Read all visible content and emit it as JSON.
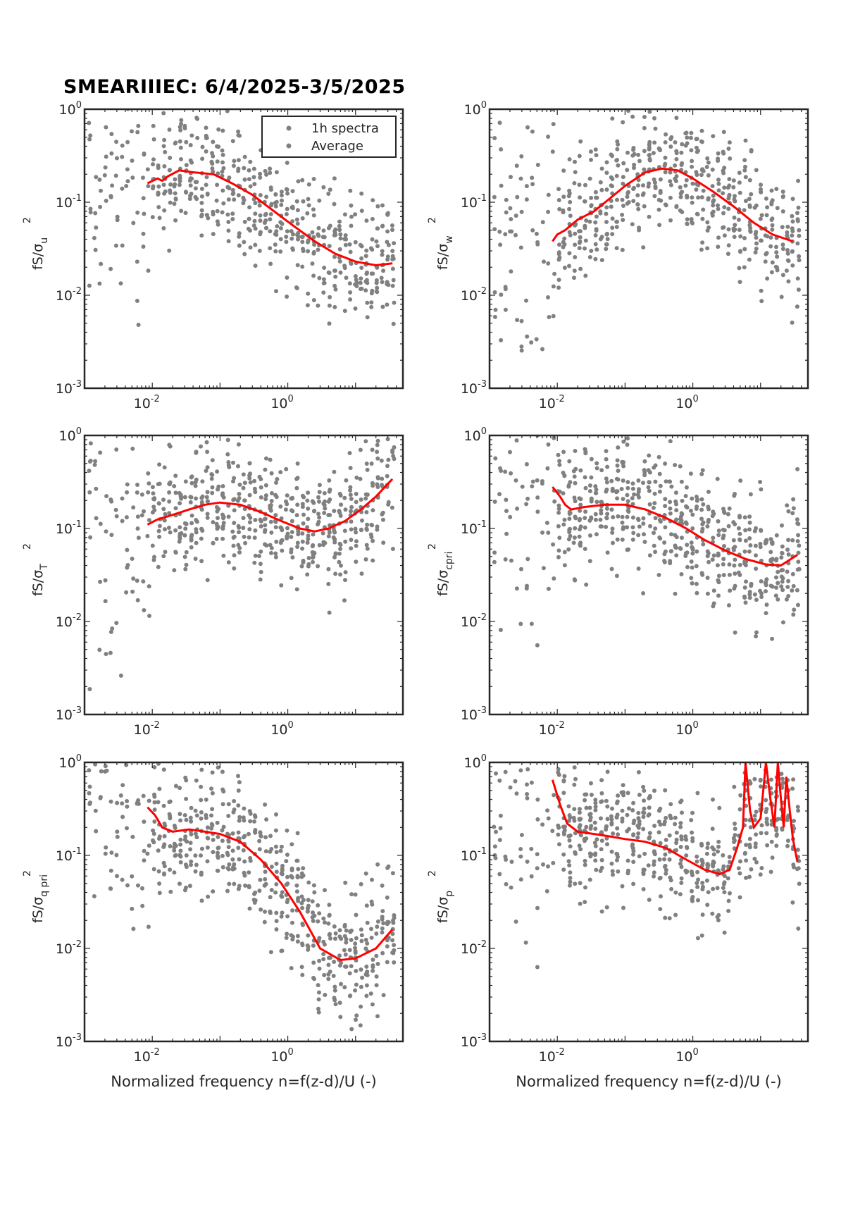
{
  "figure": {
    "title": "SMEARIIIEC: 6/4/2025-3/5/2025"
  },
  "colors": {
    "scatter": "#808080",
    "average_line": "#ff0000",
    "axes": "#262626"
  },
  "chart_data": [
    {
      "type": "scatter",
      "panel": "u",
      "xscale": "log",
      "yscale": "log",
      "xlim": [
        0.001,
        50
      ],
      "ylim": [
        0.001,
        1
      ],
      "xticks": [
        {
          "sup": "-2"
        },
        {
          "sup": "0"
        }
      ],
      "yticks": [
        {
          "sup": "-3"
        },
        {
          "sup": "-2"
        },
        {
          "sup": "-1"
        },
        {
          "sup": "0"
        }
      ],
      "ylabel": {
        "base": "fS/σ",
        "sub": "u",
        "sup": "2"
      },
      "xlabel": "",
      "legend": {
        "position": "top-right",
        "entries": [
          "1h spectra",
          "Average"
        ]
      },
      "grid": false,
      "series": [
        {
          "name": "Average",
          "style": "line",
          "color": "#ff0000",
          "x": [
            0.0085,
            0.012,
            0.014,
            0.017,
            0.025,
            0.04,
            0.08,
            0.15,
            0.3,
            0.6,
            1.2,
            2.5,
            5,
            10,
            20,
            35
          ],
          "y": [
            0.16,
            0.18,
            0.17,
            0.19,
            0.22,
            0.21,
            0.2,
            0.16,
            0.12,
            0.082,
            0.056,
            0.038,
            0.028,
            0.023,
            0.021,
            0.022
          ]
        }
      ]
    },
    {
      "type": "scatter",
      "panel": "w",
      "xscale": "log",
      "yscale": "log",
      "xlim": [
        0.001,
        50
      ],
      "ylim": [
        0.001,
        1
      ],
      "xticks": [
        {
          "sup": "-2"
        },
        {
          "sup": "0"
        }
      ],
      "yticks": [
        {
          "sup": "-3"
        },
        {
          "sup": "-2"
        },
        {
          "sup": "-1"
        },
        {
          "sup": "0"
        }
      ],
      "ylabel": {
        "base": "fS/σ",
        "sub": "w",
        "sup": "2"
      },
      "xlabel": "",
      "grid": false,
      "series": [
        {
          "name": "Average",
          "style": "line",
          "color": "#ff0000",
          "x": [
            0.0085,
            0.01,
            0.013,
            0.02,
            0.035,
            0.06,
            0.1,
            0.2,
            0.35,
            0.6,
            1,
            2,
            4,
            8,
            15,
            30
          ],
          "y": [
            0.038,
            0.045,
            0.05,
            0.065,
            0.08,
            0.11,
            0.15,
            0.21,
            0.23,
            0.22,
            0.18,
            0.13,
            0.09,
            0.06,
            0.045,
            0.038
          ]
        }
      ]
    },
    {
      "type": "scatter",
      "panel": "T",
      "xscale": "log",
      "yscale": "log",
      "xlim": [
        0.001,
        50
      ],
      "ylim": [
        0.001,
        1
      ],
      "xticks": [
        {
          "sup": "-2"
        },
        {
          "sup": "0"
        }
      ],
      "yticks": [
        {
          "sup": "-3"
        },
        {
          "sup": "-2"
        },
        {
          "sup": "-1"
        },
        {
          "sup": "0"
        }
      ],
      "ylabel": {
        "base": "fS/σ",
        "sub": "T",
        "sup": "2"
      },
      "xlabel": "",
      "grid": false,
      "series": [
        {
          "name": "Average",
          "style": "line",
          "color": "#ff0000",
          "x": [
            0.0085,
            0.012,
            0.02,
            0.035,
            0.06,
            0.1,
            0.2,
            0.4,
            0.8,
            1.5,
            2.5,
            4,
            7,
            12,
            20,
            35
          ],
          "y": [
            0.11,
            0.125,
            0.14,
            0.16,
            0.18,
            0.19,
            0.18,
            0.15,
            0.12,
            0.1,
            0.093,
            0.1,
            0.12,
            0.16,
            0.22,
            0.34
          ]
        }
      ]
    },
    {
      "type": "scatter",
      "panel": "cpri",
      "xscale": "log",
      "yscale": "log",
      "xlim": [
        0.001,
        50
      ],
      "ylim": [
        0.001,
        1
      ],
      "xticks": [
        {
          "sup": "-2"
        },
        {
          "sup": "0"
        }
      ],
      "yticks": [
        {
          "sup": "-3"
        },
        {
          "sup": "-2"
        },
        {
          "sup": "-1"
        },
        {
          "sup": "0"
        }
      ],
      "ylabel": {
        "base": "fS/σ",
        "sub": "cpri",
        "sup": "2"
      },
      "xlabel": "",
      "grid": false,
      "series": [
        {
          "name": "Average",
          "style": "line",
          "color": "#ff0000",
          "x": [
            0.0085,
            0.011,
            0.013,
            0.016,
            0.025,
            0.05,
            0.1,
            0.2,
            0.4,
            0.8,
            1.5,
            3,
            6,
            12,
            20,
            35
          ],
          "y": [
            0.28,
            0.22,
            0.18,
            0.16,
            0.17,
            0.18,
            0.18,
            0.16,
            0.13,
            0.1,
            0.075,
            0.058,
            0.047,
            0.041,
            0.04,
            0.052
          ]
        }
      ]
    },
    {
      "type": "scatter",
      "panel": "qpri",
      "xscale": "log",
      "yscale": "log",
      "xlim": [
        0.001,
        50
      ],
      "ylim": [
        0.001,
        1
      ],
      "xticks": [
        {
          "sup": "-2"
        },
        {
          "sup": "0"
        }
      ],
      "yticks": [
        {
          "sup": "-3"
        },
        {
          "sup": "-2"
        },
        {
          "sup": "-1"
        },
        {
          "sup": "0"
        }
      ],
      "ylabel": {
        "base": "fS/σ",
        "sub": "q pri",
        "sup": "2"
      },
      "xlabel": "Normalized frequency n=f(z-d)/U (-)",
      "grid": false,
      "series": [
        {
          "name": "Average",
          "style": "line",
          "color": "#ff0000",
          "x": [
            0.0085,
            0.011,
            0.014,
            0.02,
            0.035,
            0.06,
            0.1,
            0.2,
            0.4,
            0.8,
            1.5,
            3,
            6,
            10,
            20,
            35
          ],
          "y": [
            0.33,
            0.27,
            0.2,
            0.18,
            0.19,
            0.18,
            0.17,
            0.14,
            0.09,
            0.05,
            0.025,
            0.01,
            0.0075,
            0.0078,
            0.01,
            0.016
          ]
        }
      ]
    },
    {
      "type": "scatter",
      "panel": "p",
      "xscale": "log",
      "yscale": "log",
      "xlim": [
        0.001,
        50
      ],
      "ylim": [
        0.001,
        1
      ],
      "xticks": [
        {
          "sup": "-2"
        },
        {
          "sup": "0"
        }
      ],
      "yticks": [
        {
          "sup": "-3"
        },
        {
          "sup": "-2"
        },
        {
          "sup": "-1"
        },
        {
          "sup": "0"
        }
      ],
      "ylabel": {
        "base": "fS/σ",
        "sub": "p",
        "sup": "2"
      },
      "xlabel": "Normalized frequency n=f(z-d)/U (-)",
      "grid": false,
      "series": [
        {
          "name": "Average",
          "style": "line",
          "color": "#ff0000",
          "x": [
            0.0085,
            0.011,
            0.014,
            0.02,
            0.035,
            0.06,
            0.1,
            0.2,
            0.4,
            0.8,
            1.5,
            2.5,
            3.5,
            4.5,
            5.5,
            6,
            7,
            8,
            10,
            12,
            14,
            16,
            18,
            20,
            22,
            24,
            27,
            30,
            35
          ],
          "y": [
            0.65,
            0.35,
            0.22,
            0.18,
            0.17,
            0.16,
            0.15,
            0.14,
            0.12,
            0.09,
            0.07,
            0.063,
            0.07,
            0.12,
            0.2,
            1.0,
            0.3,
            0.2,
            0.25,
            1.0,
            0.4,
            0.2,
            1.0,
            0.4,
            0.2,
            0.7,
            0.3,
            0.15,
            0.085
          ]
        }
      ]
    }
  ]
}
